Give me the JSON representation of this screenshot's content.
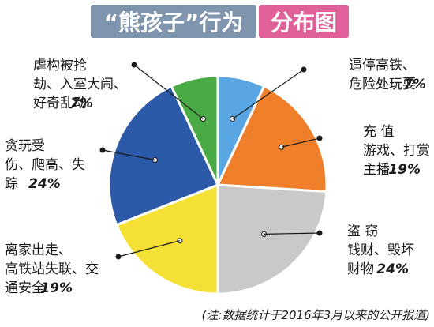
{
  "title": {
    "left": "“熊孩子”行为",
    "right": "分布图"
  },
  "colors": {
    "title_left_bg": "#7f95ad",
    "title_right_bg": "#e0609a",
    "leader": "#1a1a1a"
  },
  "chart_data": {
    "type": "pie",
    "title": "“熊孩子”行为分布图",
    "slices": [
      {
        "label_lines": [
          "逼停高铁、",
          "危险处玩耍"
        ],
        "pct_text": "7%",
        "value": 7,
        "color": "#5aa6e2"
      },
      {
        "label_lines": [
          "充 值",
          "游戏、打赏",
          "主播"
        ],
        "pct_text": "19%",
        "value": 19,
        "color": "#ef7f2a"
      },
      {
        "label_lines": [
          "盗 窃",
          "钱财、毁坏",
          "财物"
        ],
        "pct_text": "24%",
        "value": 24,
        "color": "#c9c9c9"
      },
      {
        "label_lines": [
          "离家出走、",
          "高铁站失联、交",
          "通安全"
        ],
        "pct_text": "19%",
        "value": 19,
        "color": "#f5e035"
      },
      {
        "label_lines": [
          "贪玩受",
          "伤、爬高、失",
          "踪"
        ],
        "pct_text": "24%",
        "value": 24,
        "color": "#2d5aa8"
      },
      {
        "label_lines": [
          "虐构被抢",
          "劫、入室大闹、",
          "好奇乱动"
        ],
        "pct_text": "7%",
        "value": 7,
        "color": "#4aaa45"
      }
    ],
    "note": "(注:数据统计于2016年3月以来的公开报道)"
  }
}
